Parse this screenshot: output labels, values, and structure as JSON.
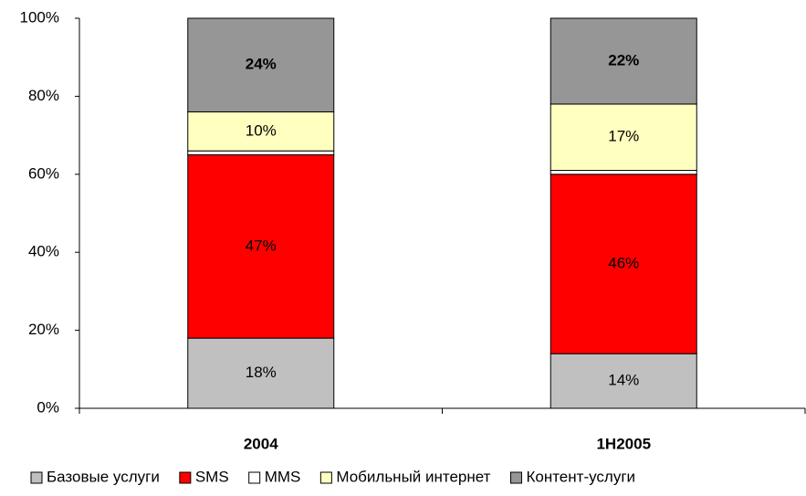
{
  "chart_data": {
    "type": "stacked_bar",
    "categories": [
      "2004",
      "1H2005"
    ],
    "series": [
      {
        "name": "Базовые услуги",
        "color": "#c0c0c0",
        "values": [
          18,
          14
        ],
        "value_labels": [
          "18%",
          "14%"
        ]
      },
      {
        "name": "SMS",
        "color": "#ff0000",
        "values": [
          47,
          46
        ],
        "value_labels": [
          "47%",
          "46%"
        ]
      },
      {
        "name": "MMS",
        "color": "#ffffff",
        "values": [
          1,
          1
        ]
      },
      {
        "name": "Мобильный интернет",
        "color": "#ffffc0",
        "values": [
          10,
          17
        ],
        "value_labels": [
          "10%",
          "17%"
        ]
      },
      {
        "name": "Контент-услуги",
        "color": "#969696",
        "values": [
          24,
          22
        ],
        "value_labels": [
          "24%",
          "22%"
        ]
      }
    ],
    "ylim": [
      0,
      100
    ],
    "yticks": [
      {
        "value": 0,
        "label": "0%"
      },
      {
        "value": 20,
        "label": "20%"
      },
      {
        "value": 40,
        "label": "40%"
      },
      {
        "value": 60,
        "label": "60%"
      },
      {
        "value": 80,
        "label": "80%"
      },
      {
        "value": 100,
        "label": "100%"
      }
    ],
    "legend": "bottom"
  }
}
